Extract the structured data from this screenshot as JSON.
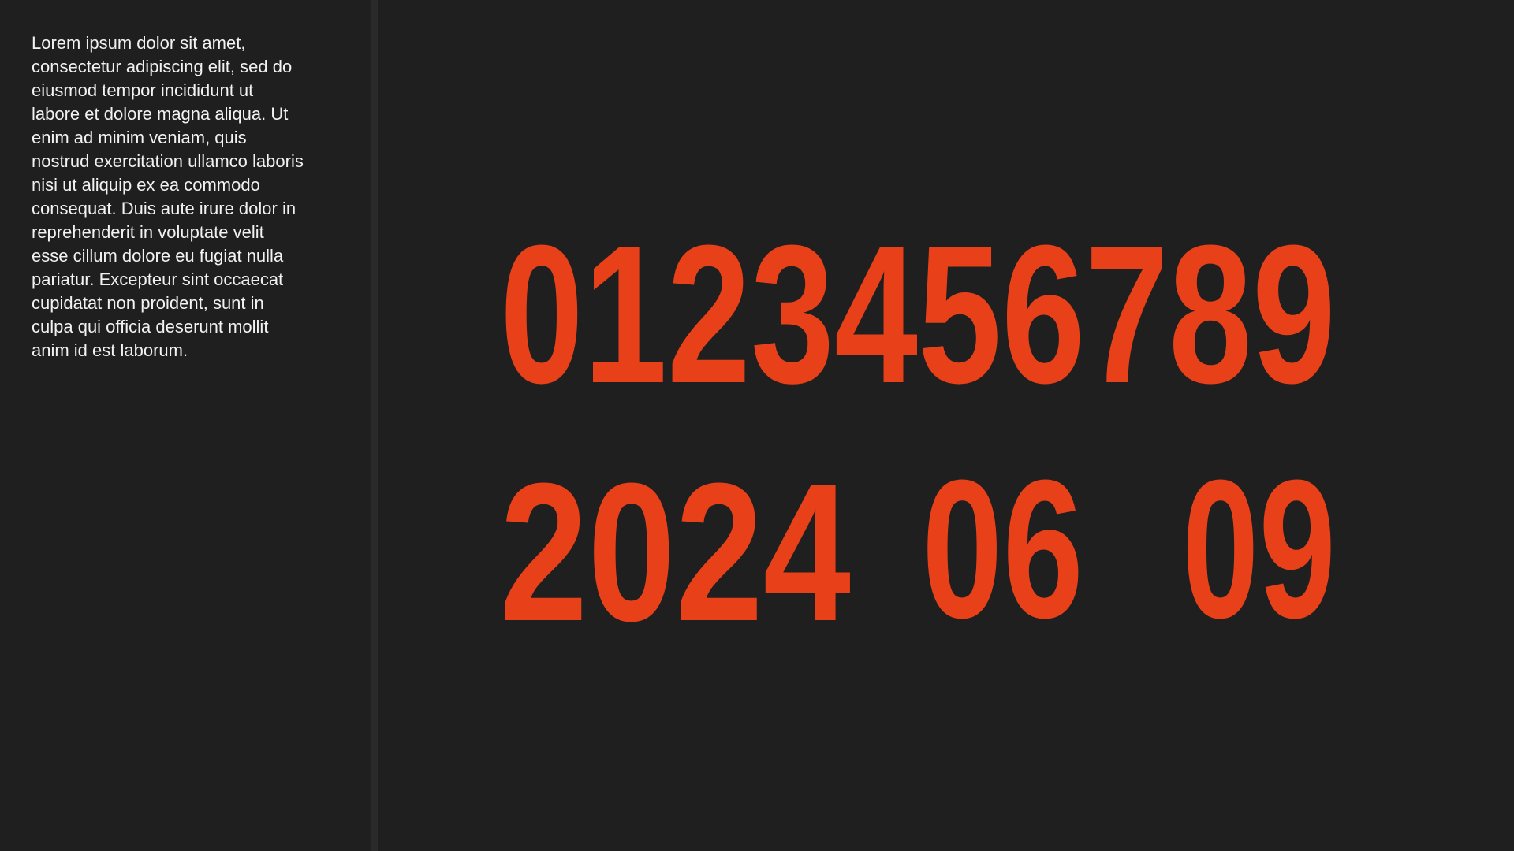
{
  "sidebar": {
    "body_text": "Lorem ipsum dolor sit amet,\nconsectetur adipiscing elit, sed do\neiusmod  tempor incididunt ut\nlabore et dolore magna aliqua. Ut\nenim ad minim  veniam, quis\nnostrud exercitation ullamco laboris\nnisi ut aliquip ex ea  commodo\nconsequat. Duis aute irure dolor in\nreprehenderit in voluptate  velit\nesse cillum dolore eu fugiat nulla\npariatur. Excepteur sint  occaecat\ncupidatat non proident, sunt in\nculpa qui officia deserunt  mollit\nanim id est laborum."
  },
  "display": {
    "row1": "0123456789",
    "row2_year": "2024",
    "row2_month": "06",
    "row2_day": "09",
    "color": "#e8411a"
  },
  "colors": {
    "background": "#1f1f1f",
    "divider": "#2a2a2a",
    "text": "#f2f2f2",
    "accent": "#e8411a"
  }
}
